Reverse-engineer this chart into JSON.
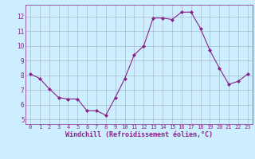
{
  "x": [
    0,
    1,
    2,
    3,
    4,
    5,
    6,
    7,
    8,
    9,
    10,
    11,
    12,
    13,
    14,
    15,
    16,
    17,
    18,
    19,
    20,
    21,
    22,
    23
  ],
  "y": [
    8.1,
    7.8,
    7.1,
    6.5,
    6.4,
    6.4,
    5.6,
    5.6,
    5.3,
    6.5,
    7.8,
    9.4,
    10.0,
    11.9,
    11.9,
    11.8,
    12.3,
    12.3,
    11.2,
    9.7,
    8.5,
    7.4,
    7.6,
    8.1
  ],
  "line_color": "#882288",
  "marker": "D",
  "marker_size": 2.0,
  "line_width": 0.8,
  "bg_color": "#cceeff",
  "grid_color": "#aabbcc",
  "xlabel": "Windchill (Refroidissement éolien,°C)",
  "xlabel_color": "#882288",
  "tick_color": "#882288",
  "xlim": [
    -0.5,
    23.5
  ],
  "ylim": [
    4.7,
    12.8
  ],
  "yticks": [
    5,
    6,
    7,
    8,
    9,
    10,
    11,
    12
  ],
  "xticks": [
    0,
    1,
    2,
    3,
    4,
    5,
    6,
    7,
    8,
    9,
    10,
    11,
    12,
    13,
    14,
    15,
    16,
    17,
    18,
    19,
    20,
    21,
    22,
    23
  ],
  "figsize": [
    3.2,
    2.0
  ],
  "dpi": 100
}
